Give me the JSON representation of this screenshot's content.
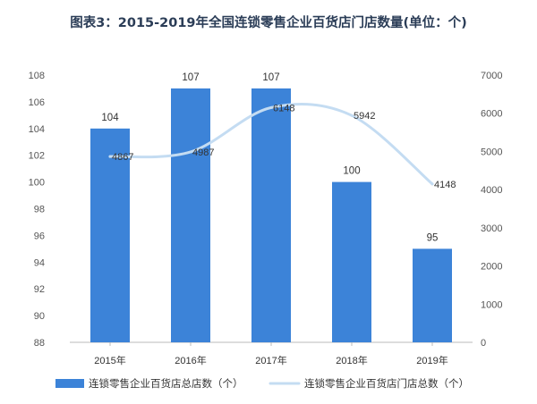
{
  "title": "图表3：2015-2019年全国连锁零售企业百货店门店数量(单位：个)",
  "colors": {
    "bar": "#3c83d8",
    "line": "#c4dcf2",
    "axis": "#bbbbbb"
  },
  "chart_data": {
    "type": "bar",
    "title": "图表3：2015-2019年全国连锁零售企业百货店门店数量(单位：个)",
    "categories": [
      "2015年",
      "2016年",
      "2017年",
      "2018年",
      "2019年"
    ],
    "series": [
      {
        "name": "连锁零售企业百货店总店数（个）",
        "type": "bar",
        "axis": "left",
        "values": [
          104,
          107,
          107,
          100,
          95
        ]
      },
      {
        "name": "连锁零售企业百货店门店总数（个）",
        "type": "line",
        "axis": "right",
        "values": [
          4867,
          4987,
          6148,
          5942,
          4148
        ]
      }
    ],
    "ylim_left": [
      88,
      108
    ],
    "yticks_left": [
      88,
      90,
      92,
      94,
      96,
      98,
      100,
      102,
      104,
      106,
      108
    ],
    "ylim_right": [
      0,
      7000
    ],
    "yticks_right": [
      0,
      1000,
      2000,
      3000,
      4000,
      5000,
      6000,
      7000
    ],
    "grid": false,
    "legend": "bottom"
  }
}
